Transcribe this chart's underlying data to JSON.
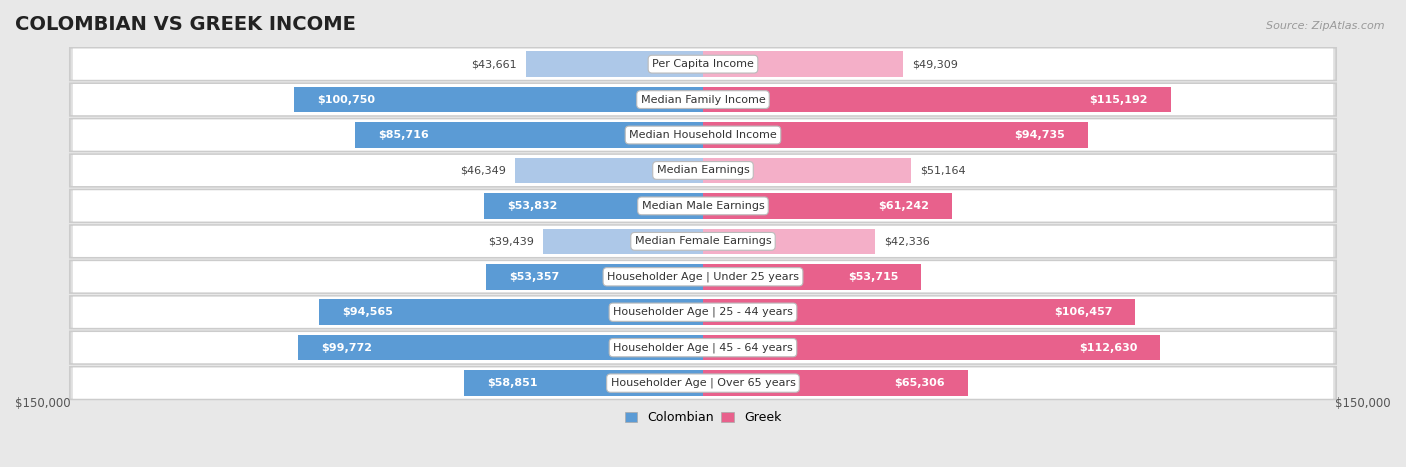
{
  "title": "COLOMBIAN VS GREEK INCOME",
  "source": "Source: ZipAtlas.com",
  "categories": [
    "Per Capita Income",
    "Median Family Income",
    "Median Household Income",
    "Median Earnings",
    "Median Male Earnings",
    "Median Female Earnings",
    "Householder Age | Under 25 years",
    "Householder Age | 25 - 44 years",
    "Householder Age | 45 - 64 years",
    "Householder Age | Over 65 years"
  ],
  "colombian_values": [
    43661,
    100750,
    85716,
    46349,
    53832,
    39439,
    53357,
    94565,
    99772,
    58851
  ],
  "greek_values": [
    49309,
    115192,
    94735,
    51164,
    61242,
    42336,
    53715,
    106457,
    112630,
    65306
  ],
  "colombian_labels": [
    "$43,661",
    "$100,750",
    "$85,716",
    "$46,349",
    "$53,832",
    "$39,439",
    "$53,357",
    "$94,565",
    "$99,772",
    "$58,851"
  ],
  "greek_labels": [
    "$49,309",
    "$115,192",
    "$94,735",
    "$51,164",
    "$61,242",
    "$42,336",
    "$53,715",
    "$106,457",
    "$112,630",
    "$65,306"
  ],
  "colombian_color_light": "#adc8e8",
  "colombian_color_dark": "#5b9bd5",
  "greek_color_light": "#f4afc8",
  "greek_color_dark": "#e8618c",
  "max_value": 150000,
  "bar_height": 0.72,
  "bg_color": "#e8e8e8",
  "row_bg_color": "#ffffff",
  "title_fontsize": 14,
  "legend_labels": [
    "Colombian",
    "Greek"
  ],
  "axis_label_left": "$150,000",
  "axis_label_right": "$150,000",
  "inside_threshold": 52000
}
